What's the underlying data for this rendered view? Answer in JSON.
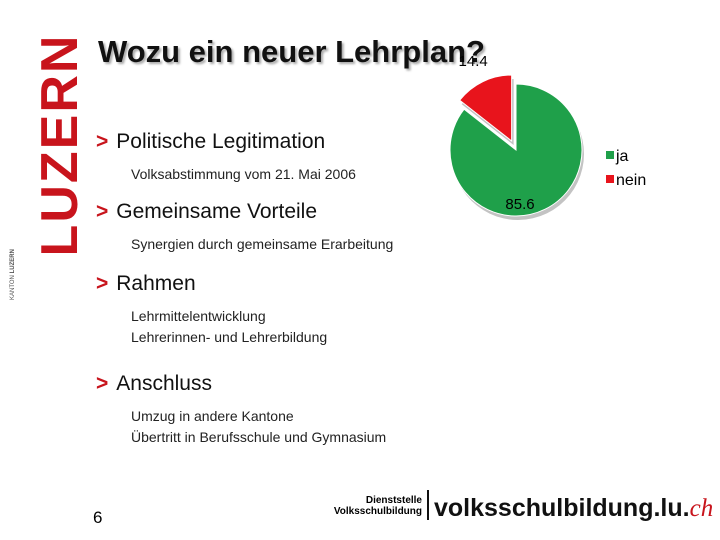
{
  "logo": {
    "name": "LUZERN",
    "badge": [
      "KANTON",
      "LUZERN"
    ]
  },
  "title": "Wozu ein neuer Lehrplan?",
  "bullets": [
    {
      "heading": "Politische Legitimation",
      "details": [
        "Volksabstimmung vom 21. Mai 2006"
      ]
    },
    {
      "heading": "Gemeinsame Vorteile",
      "details": [
        "Synergien durch gemeinsame Erarbeitung"
      ]
    },
    {
      "heading": "Rahmen",
      "details": [
        "Lehrmittelentwicklung",
        "Lehrerinnen- und Lehrerbildung"
      ]
    },
    {
      "heading": "Anschluss",
      "details": [
        "Umzug in andere Kantone",
        "Übertritt in Berufsschule und Gymnasium"
      ]
    }
  ],
  "footer": {
    "page": "6",
    "department": [
      "Dienststelle",
      "Volksschulbildung"
    ],
    "site": "volksschulbildung.lu.",
    "tld": "ch"
  },
  "chart_data": {
    "type": "pie",
    "categories": [
      "ja",
      "nein"
    ],
    "values": [
      85.6,
      14.4
    ],
    "colors": [
      "#1fa04a",
      "#e8141c"
    ],
    "exploded": [
      false,
      true
    ]
  }
}
